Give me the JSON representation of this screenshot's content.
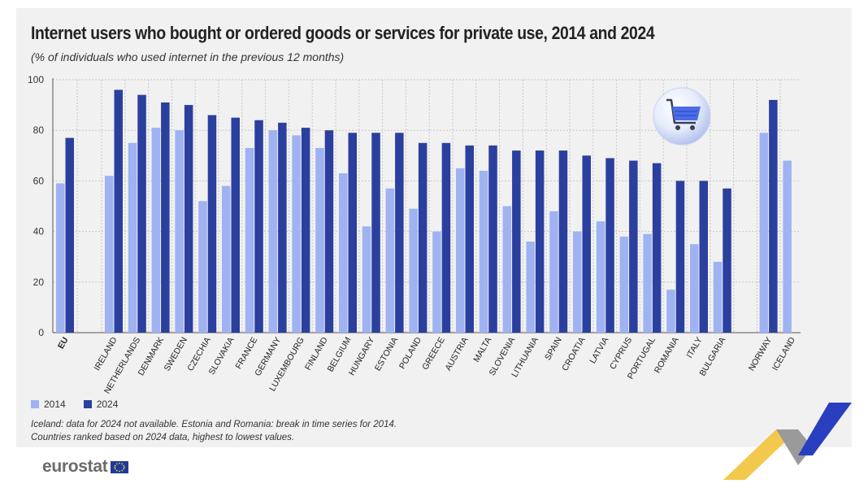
{
  "title": "Internet users who bought or ordered goods or services for private use, 2014 and 2024",
  "subtitle": "(% of individuals who used internet in the previous 12 months)",
  "notes": [
    "Iceland: data for 2024 not available. Estonia and Romania: break in time series for 2014.",
    "Countries ranked based on 2024 data, highest to lowest values."
  ],
  "logo_text": "eurostat",
  "colors": {
    "s2014": "#9fb2f2",
    "s2024": "#2b3f9e",
    "grid": "#c8c8c8"
  },
  "chart_data": {
    "type": "bar",
    "title": "Internet users who bought or ordered goods or services for private use, 2014 and 2024",
    "xlabel": "",
    "ylabel": "",
    "ylim": [
      0,
      100
    ],
    "yticks": [
      0,
      20,
      40,
      60,
      80,
      100
    ],
    "grid": true,
    "legend_position": "bottom-left",
    "categories": [
      "EU",
      "IRELAND",
      "NETHERLANDS",
      "DENMARK",
      "SWEDEN",
      "CZECHIA",
      "SLOVAKIA",
      "FRANCE",
      "GERMANY",
      "LUXEMBOURG",
      "FINLAND",
      "BELGIUM",
      "HUNGARY",
      "ESTONIA",
      "POLAND",
      "GREECE",
      "AUSTRIA",
      "MALTA",
      "SLOVENIA",
      "LITHUANIA",
      "SPAIN",
      "CROATIA",
      "LATVIA",
      "CYPRUS",
      "PORTUGAL",
      "ROMANIA",
      "ITALY",
      "BULGARIA",
      "NORWAY",
      "ICELAND"
    ],
    "series": [
      {
        "name": "2014",
        "values": [
          59,
          62,
          75,
          81,
          80,
          52,
          58,
          73,
          80,
          78,
          73,
          63,
          42,
          57,
          49,
          40,
          65,
          64,
          50,
          36,
          48,
          40,
          44,
          38,
          39,
          17,
          35,
          28,
          79,
          68
        ]
      },
      {
        "name": "2024",
        "values": [
          77,
          96,
          94,
          91,
          90,
          86,
          85,
          84,
          83,
          81,
          80,
          79,
          79,
          79,
          75,
          75,
          74,
          74,
          72,
          72,
          72,
          70,
          69,
          68,
          67,
          60,
          60,
          57,
          92,
          null
        ]
      }
    ]
  }
}
